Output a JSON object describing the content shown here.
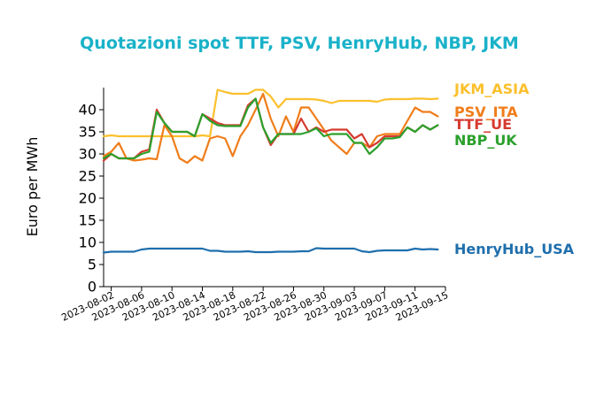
{
  "chart_data": {
    "type": "line",
    "title": "Quotazioni spot TTF, PSV, HenryHub, NBP, JKM",
    "ylabel": "Euro per MWh",
    "xlabel": "",
    "ylim": [
      0,
      45
    ],
    "yticks": [
      0,
      5,
      10,
      15,
      20,
      25,
      30,
      35,
      40
    ],
    "xlim": [
      "2023-08-01",
      "2023-09-15"
    ],
    "xticks": [
      "2023-08-02",
      "2023-08-06",
      "2023-08-10",
      "2023-08-14",
      "2023-08-18",
      "2023-08-22",
      "2023-08-26",
      "2023-08-30",
      "2023-09-03",
      "2023-09-07",
      "2023-09-11",
      "2023-09-15"
    ],
    "grid": false,
    "legend": "series names at right end of lines",
    "series": [
      {
        "name": "JKM_ASIA",
        "color": "#fbc02d",
        "x": [
          "2023-08-01",
          "2023-08-02",
          "2023-08-03",
          "2023-08-04",
          "2023-08-05",
          "2023-08-06",
          "2023-08-07",
          "2023-08-08",
          "2023-08-09",
          "2023-08-10",
          "2023-08-11",
          "2023-08-12",
          "2023-08-13",
          "2023-08-14",
          "2023-08-15",
          "2023-08-16",
          "2023-08-17",
          "2023-08-18",
          "2023-08-19",
          "2023-08-20",
          "2023-08-21",
          "2023-08-22",
          "2023-08-23",
          "2023-08-24",
          "2023-08-25",
          "2023-08-26",
          "2023-08-27",
          "2023-08-28",
          "2023-08-29",
          "2023-08-30",
          "2023-08-31",
          "2023-09-01",
          "2023-09-02",
          "2023-09-03",
          "2023-09-04",
          "2023-09-05",
          "2023-09-06",
          "2023-09-07",
          "2023-09-08",
          "2023-09-09",
          "2023-09-10",
          "2023-09-11",
          "2023-09-12",
          "2023-09-13",
          "2023-09-14"
        ],
        "values": [
          34.0,
          34.2,
          34.0,
          34.0,
          34.0,
          34.0,
          34.0,
          34.0,
          34.0,
          34.0,
          34.0,
          34.0,
          34.0,
          34.2,
          34.0,
          44.5,
          44.0,
          43.6,
          43.6,
          43.6,
          44.5,
          44.5,
          43.0,
          40.5,
          42.4,
          42.4,
          42.4,
          42.4,
          42.3,
          42.0,
          41.5,
          42.0,
          42.0,
          42.0,
          42.0,
          42.0,
          41.8,
          42.3,
          42.4,
          42.4,
          42.4,
          42.5,
          42.5,
          42.4,
          42.5
        ]
      },
      {
        "name": "PSV_ITA",
        "color": "#f07d1a",
        "x": [
          "2023-08-01",
          "2023-08-02",
          "2023-08-03",
          "2023-08-04",
          "2023-08-05",
          "2023-08-06",
          "2023-08-07",
          "2023-08-08",
          "2023-08-09",
          "2023-08-10",
          "2023-08-11",
          "2023-08-12",
          "2023-08-13",
          "2023-08-14",
          "2023-08-15",
          "2023-08-16",
          "2023-08-17",
          "2023-08-18",
          "2023-08-19",
          "2023-08-20",
          "2023-08-21",
          "2023-08-22",
          "2023-08-23",
          "2023-08-24",
          "2023-08-25",
          "2023-08-26",
          "2023-08-27",
          "2023-08-28",
          "2023-08-29",
          "2023-08-30",
          "2023-08-31",
          "2023-09-01",
          "2023-09-02",
          "2023-09-03",
          "2023-09-04",
          "2023-09-05",
          "2023-09-06",
          "2023-09-07",
          "2023-09-08",
          "2023-09-09",
          "2023-09-10",
          "2023-09-11",
          "2023-09-12",
          "2023-09-13",
          "2023-09-14"
        ],
        "values": [
          29.5,
          30.5,
          32.5,
          29.0,
          28.5,
          28.7,
          29.0,
          28.8,
          36.5,
          34.0,
          29.0,
          28.0,
          29.5,
          28.5,
          33.5,
          34.0,
          33.5,
          29.5,
          34.0,
          36.5,
          40.0,
          43.6,
          38.0,
          34.0,
          38.5,
          35.0,
          40.5,
          40.5,
          38.0,
          35.5,
          33.0,
          31.5,
          30.0,
          32.5,
          32.5,
          31.5,
          34.0,
          34.5,
          34.5,
          34.5,
          37.5,
          40.5,
          39.5,
          39.5,
          38.5
        ]
      },
      {
        "name": "TTF_UE",
        "color": "#d63a2f",
        "x": [
          "2023-08-01",
          "2023-08-02",
          "2023-08-03",
          "2023-08-04",
          "2023-08-05",
          "2023-08-06",
          "2023-08-07",
          "2023-08-08",
          "2023-08-09",
          "2023-08-10",
          "2023-08-11",
          "2023-08-12",
          "2023-08-13",
          "2023-08-14",
          "2023-08-15",
          "2023-08-16",
          "2023-08-17",
          "2023-08-18",
          "2023-08-19",
          "2023-08-20",
          "2023-08-21",
          "2023-08-22",
          "2023-08-23",
          "2023-08-24",
          "2023-08-25",
          "2023-08-26",
          "2023-08-27",
          "2023-08-28",
          "2023-08-29",
          "2023-08-30",
          "2023-08-31",
          "2023-09-01",
          "2023-09-02",
          "2023-09-03",
          "2023-09-04",
          "2023-09-05",
          "2023-09-06",
          "2023-09-07",
          "2023-09-08",
          "2023-09-09",
          "2023-09-10",
          "2023-09-11",
          "2023-09-12",
          "2023-09-13",
          "2023-09-14"
        ],
        "values": [
          28.5,
          30.0,
          29.0,
          29.0,
          29.0,
          30.5,
          31.0,
          40.0,
          37.0,
          35.0,
          35.0,
          35.0,
          34.0,
          39.0,
          38.0,
          37.0,
          36.5,
          36.5,
          36.5,
          41.0,
          42.5,
          36.0,
          32.0,
          34.5,
          34.5,
          34.5,
          38.0,
          35.0,
          36.0,
          35.0,
          35.5,
          35.5,
          35.5,
          33.5,
          34.5,
          31.5,
          32.5,
          34.0,
          34.0,
          34.0,
          36.0,
          35.0,
          36.5,
          35.5,
          36.5
        ]
      },
      {
        "name": "NBP_UK",
        "color": "#2ca02c",
        "x": [
          "2023-08-01",
          "2023-08-02",
          "2023-08-03",
          "2023-08-04",
          "2023-08-05",
          "2023-08-06",
          "2023-08-07",
          "2023-08-08",
          "2023-08-09",
          "2023-08-10",
          "2023-08-11",
          "2023-08-12",
          "2023-08-13",
          "2023-08-14",
          "2023-08-15",
          "2023-08-16",
          "2023-08-17",
          "2023-08-18",
          "2023-08-19",
          "2023-08-20",
          "2023-08-21",
          "2023-08-22",
          "2023-08-23",
          "2023-08-24",
          "2023-08-25",
          "2023-08-26",
          "2023-08-27",
          "2023-08-28",
          "2023-08-29",
          "2023-08-30",
          "2023-08-31",
          "2023-09-01",
          "2023-09-02",
          "2023-09-03",
          "2023-09-04",
          "2023-09-05",
          "2023-09-06",
          "2023-09-07",
          "2023-09-08",
          "2023-09-09",
          "2023-09-10",
          "2023-09-11",
          "2023-09-12",
          "2023-09-13",
          "2023-09-14"
        ],
        "values": [
          29.0,
          30.0,
          29.0,
          29.0,
          29.0,
          30.0,
          30.5,
          39.5,
          37.0,
          35.0,
          35.0,
          35.0,
          34.0,
          39.0,
          37.5,
          36.5,
          36.3,
          36.3,
          36.3,
          40.5,
          42.5,
          36.0,
          32.5,
          34.5,
          34.5,
          34.5,
          34.5,
          35.0,
          35.8,
          34.0,
          34.5,
          34.5,
          34.5,
          32.5,
          32.5,
          30.0,
          31.5,
          33.5,
          33.5,
          33.8,
          36.0,
          35.0,
          36.5,
          35.5,
          36.5
        ]
      },
      {
        "name": "HenryHub_USA",
        "color": "#1f6fad",
        "x": [
          "2023-08-01",
          "2023-08-02",
          "2023-08-03",
          "2023-08-04",
          "2023-08-05",
          "2023-08-06",
          "2023-08-07",
          "2023-08-08",
          "2023-08-09",
          "2023-08-10",
          "2023-08-11",
          "2023-08-12",
          "2023-08-13",
          "2023-08-14",
          "2023-08-15",
          "2023-08-16",
          "2023-08-17",
          "2023-08-18",
          "2023-08-19",
          "2023-08-20",
          "2023-08-21",
          "2023-08-22",
          "2023-08-23",
          "2023-08-24",
          "2023-08-25",
          "2023-08-26",
          "2023-08-27",
          "2023-08-28",
          "2023-08-29",
          "2023-08-30",
          "2023-08-31",
          "2023-09-01",
          "2023-09-02",
          "2023-09-03",
          "2023-09-04",
          "2023-09-05",
          "2023-09-06",
          "2023-09-07",
          "2023-09-08",
          "2023-09-09",
          "2023-09-10",
          "2023-09-11",
          "2023-09-12",
          "2023-09-13",
          "2023-09-14"
        ],
        "values": [
          7.7,
          7.9,
          7.9,
          7.9,
          7.9,
          8.4,
          8.6,
          8.6,
          8.6,
          8.6,
          8.6,
          8.6,
          8.6,
          8.6,
          8.1,
          8.1,
          7.9,
          7.9,
          7.9,
          8.0,
          7.8,
          7.8,
          7.8,
          7.9,
          7.9,
          7.9,
          8.0,
          8.0,
          8.7,
          8.6,
          8.6,
          8.6,
          8.6,
          8.6,
          8.0,
          7.8,
          8.1,
          8.2,
          8.2,
          8.2,
          8.2,
          8.6,
          8.4,
          8.5,
          8.4
        ]
      }
    ]
  }
}
